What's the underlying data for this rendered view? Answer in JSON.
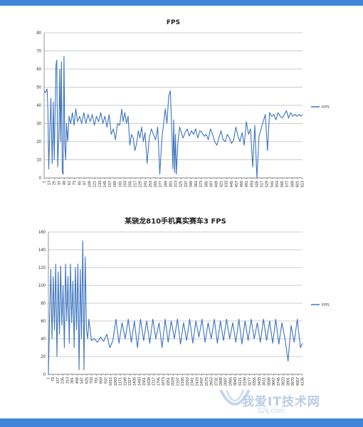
{
  "chart_data": [
    {
      "type": "line",
      "title": "FPS",
      "xlabel": "",
      "ylabel": "",
      "ylim": [
        0,
        80
      ],
      "yticks": [
        0,
        10,
        20,
        30,
        40,
        50,
        60,
        70,
        80
      ],
      "xlim": [
        1,
        613
      ],
      "xtick_labels": [
        "1",
        "13",
        "25",
        "37",
        "49",
        "61",
        "73",
        "85",
        "97",
        "109",
        "121",
        "133",
        "145",
        "157",
        "169",
        "181",
        "193",
        "205",
        "217",
        "229",
        "241",
        "253",
        "265",
        "277",
        "289",
        "301",
        "313",
        "325",
        "337",
        "349",
        "361",
        "373",
        "385",
        "397",
        "409",
        "421",
        "433",
        "445",
        "457",
        "469",
        "481",
        "493",
        "505",
        "517",
        "529",
        "541",
        "553",
        "565",
        "577",
        "589",
        "601",
        "613"
      ],
      "legend": {
        "position": "right",
        "label": "FPS"
      },
      "grid": true,
      "color": "#3c74c0",
      "series": [
        {
          "name": "FPS",
          "x": [
            1,
            4,
            8,
            10,
            12,
            14,
            17,
            20,
            23,
            25,
            27,
            29,
            31,
            33,
            36,
            38,
            40,
            42,
            44,
            46,
            48,
            50,
            52,
            54,
            57,
            60,
            64,
            68,
            72,
            76,
            80,
            85,
            90,
            95,
            100,
            105,
            110,
            115,
            120,
            125,
            130,
            135,
            140,
            145,
            150,
            155,
            160,
            165,
            170,
            175,
            180,
            185,
            188,
            192,
            196,
            200,
            204,
            208,
            212,
            216,
            220,
            224,
            228,
            232,
            236,
            240,
            245,
            250,
            255,
            260,
            265,
            270,
            275,
            280,
            284,
            288,
            292,
            296,
            300,
            304,
            306,
            308,
            310,
            312,
            314,
            318,
            322,
            326,
            330,
            335,
            340,
            345,
            350,
            355,
            360,
            365,
            370,
            375,
            380,
            385,
            390,
            395,
            400,
            405,
            410,
            415,
            420,
            425,
            430,
            435,
            440,
            445,
            450,
            455,
            460,
            465,
            470,
            475,
            480,
            485,
            490,
            495,
            500,
            505,
            510,
            515,
            520,
            525,
            530,
            535,
            540,
            545,
            550,
            555,
            560,
            565,
            570,
            575,
            580,
            585,
            590,
            595,
            600,
            605,
            610,
            613
          ],
          "y": [
            48,
            47,
            49,
            38,
            5,
            22,
            44,
            8,
            42,
            10,
            35,
            62,
            65,
            6,
            25,
            60,
            20,
            64,
            3,
            2,
            67,
            18,
            10,
            30,
            20,
            34,
            30,
            36,
            29,
            38,
            31,
            34,
            30,
            36,
            30,
            35,
            31,
            35,
            29,
            34,
            31,
            36,
            30,
            34,
            28,
            35,
            24,
            27,
            21,
            30,
            29,
            38,
            31,
            36,
            30,
            34,
            18,
            24,
            22,
            15,
            19,
            26,
            22,
            28,
            20,
            25,
            8,
            22,
            27,
            24,
            21,
            28,
            2,
            22,
            30,
            38,
            30,
            45,
            48,
            22,
            5,
            32,
            3,
            24,
            2,
            20,
            28,
            25,
            22,
            25,
            27,
            23,
            26,
            24,
            27,
            22,
            26,
            25,
            23,
            24,
            21,
            27,
            24,
            20,
            18,
            22,
            26,
            21,
            20,
            24,
            22,
            19,
            21,
            28,
            23,
            20,
            25,
            18,
            31,
            24,
            27,
            6,
            29,
            0,
            23,
            27,
            31,
            35,
            15,
            36,
            34,
            35,
            32,
            36,
            34,
            33,
            35,
            37,
            33,
            36,
            34,
            35,
            34,
            35,
            34,
            35
          ]
        }
      ]
    },
    {
      "type": "line",
      "title": "某骁龙810手机真实赛车3 FPS",
      "xlabel": "",
      "ylabel": "",
      "ylim": [
        0,
        160
      ],
      "yticks": [
        0,
        20,
        40,
        60,
        80,
        100,
        120,
        140,
        160
      ],
      "xlim": [
        1,
        4135
      ],
      "xtick_labels": [
        "1",
        "79",
        "157",
        "235",
        "313",
        "391",
        "469",
        "547",
        "625",
        "703",
        "781",
        "859",
        "937",
        "1015",
        "1093",
        "1171",
        "1249",
        "1327",
        "1405",
        "1483",
        "1561",
        "1639",
        "1717",
        "1795",
        "1873",
        "1951",
        "2029",
        "2107",
        "2185",
        "2263",
        "2341",
        "2419",
        "2497",
        "2575",
        "2653",
        "2731",
        "2809",
        "2887",
        "2965",
        "3043",
        "3121",
        "3199",
        "3277",
        "3355",
        "3433",
        "3511",
        "3589",
        "3667",
        "3745",
        "3823",
        "3901",
        "3979",
        "4057",
        "4135"
      ],
      "legend": {
        "position": "right",
        "label": "FPS"
      },
      "grid": true,
      "color": "#3c74c0",
      "series": [
        {
          "name": "FPS",
          "x": [
            1,
            20,
            40,
            60,
            80,
            100,
            120,
            140,
            160,
            180,
            200,
            220,
            240,
            260,
            280,
            300,
            320,
            340,
            360,
            380,
            400,
            420,
            440,
            460,
            480,
            500,
            520,
            540,
            560,
            580,
            600,
            620,
            640,
            660,
            700,
            750,
            800,
            850,
            900,
            950,
            1000,
            1050,
            1100,
            1150,
            1200,
            1250,
            1300,
            1350,
            1400,
            1450,
            1500,
            1550,
            1600,
            1650,
            1700,
            1750,
            1800,
            1850,
            1900,
            1950,
            2000,
            2050,
            2100,
            2150,
            2200,
            2250,
            2300,
            2350,
            2400,
            2450,
            2500,
            2550,
            2600,
            2650,
            2700,
            2750,
            2800,
            2850,
            2900,
            2950,
            3000,
            3050,
            3100,
            3150,
            3200,
            3250,
            3300,
            3350,
            3400,
            3450,
            3500,
            3550,
            3600,
            3650,
            3700,
            3750,
            3800,
            3850,
            3900,
            3950,
            4000,
            4050,
            4100,
            4135
          ],
          "y": [
            0,
            60,
            118,
            40,
            110,
            50,
            124,
            20,
            115,
            45,
            122,
            55,
            100,
            30,
            124,
            60,
            110,
            35,
            124,
            58,
            105,
            30,
            120,
            50,
            124,
            5,
            118,
            40,
            150,
            5,
            132,
            50,
            40,
            62,
            38,
            40,
            36,
            42,
            37,
            45,
            30,
            38,
            62,
            35,
            58,
            40,
            62,
            36,
            60,
            30,
            62,
            38,
            60,
            35,
            62,
            40,
            58,
            30,
            62,
            36,
            60,
            40,
            62,
            34,
            58,
            38,
            62,
            35,
            60,
            42,
            62,
            36,
            58,
            40,
            62,
            35,
            60,
            38,
            62,
            40,
            58,
            36,
            62,
            34,
            60,
            38,
            62,
            40,
            58,
            36,
            62,
            38,
            60,
            35,
            62,
            34,
            58,
            40,
            15,
            55,
            36,
            62,
            30,
            35
          ]
        }
      ]
    }
  ],
  "watermark": {
    "brand": "我爱IT技术网",
    "site": "52ij.com"
  }
}
